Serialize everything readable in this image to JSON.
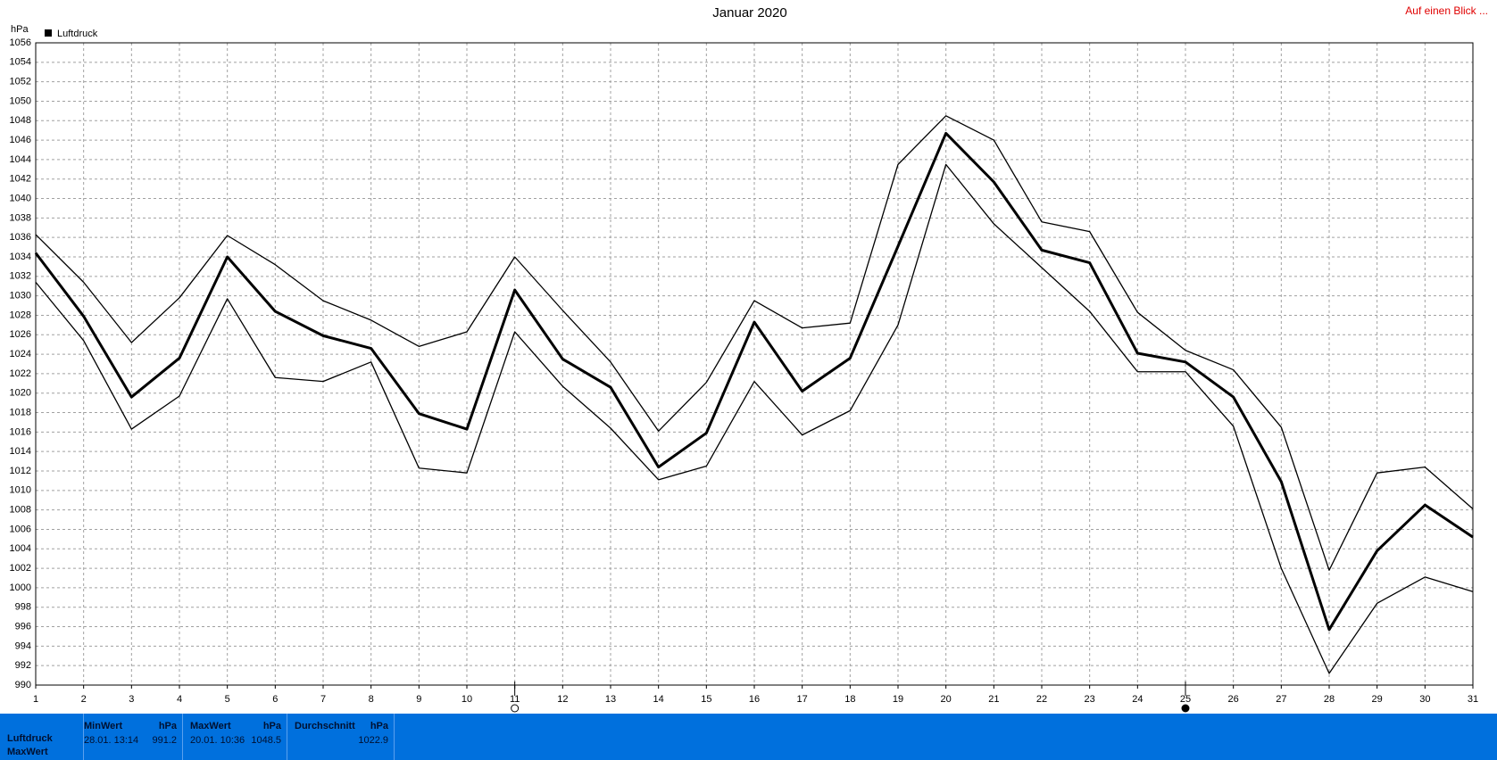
{
  "link": "Auf einen Blick ...",
  "chart_data": {
    "type": "line",
    "title": "Januar 2020",
    "y_unit": "hPa",
    "legend": "Luftdruck",
    "x": [
      1,
      2,
      3,
      4,
      5,
      6,
      7,
      8,
      9,
      10,
      11,
      12,
      13,
      14,
      15,
      16,
      17,
      18,
      19,
      20,
      21,
      22,
      23,
      24,
      25,
      26,
      27,
      28,
      29,
      30,
      31
    ],
    "xlim": [
      1,
      31
    ],
    "ylim": [
      990,
      1056
    ],
    "yticks": [
      990,
      992,
      994,
      996,
      998,
      1000,
      1002,
      1004,
      1006,
      1008,
      1010,
      1012,
      1014,
      1016,
      1018,
      1020,
      1022,
      1024,
      1026,
      1028,
      1030,
      1032,
      1034,
      1036,
      1038,
      1040,
      1042,
      1044,
      1046,
      1048,
      1050,
      1052,
      1054,
      1056
    ],
    "grid": true,
    "series": [
      {
        "color": "#000000",
        "values": [
          1036.3,
          1031.4,
          1025.2,
          1029.8,
          1036.2,
          1033.2,
          1029.5,
          1027.5,
          1024.8,
          1026.3,
          1034.0,
          1028.5,
          1023.2,
          1016.1,
          1021.1,
          1029.5,
          1026.7,
          1027.2,
          1043.5,
          1048.5,
          1046.0,
          1037.6,
          1036.6,
          1028.3,
          1024.4,
          1022.4,
          1016.5,
          1001.8,
          1011.8,
          1012.4,
          1008.1
        ]
      },
      {
        "name": "Luftdruck",
        "color": "#000000",
        "values": [
          1034.4,
          1027.9,
          1019.6,
          1023.6,
          1034.0,
          1028.4,
          1025.9,
          1024.6,
          1017.9,
          1016.3,
          1030.6,
          1023.5,
          1020.6,
          1012.4,
          1015.9,
          1027.3,
          1020.2,
          1023.6,
          1035.1,
          1046.7,
          1041.7,
          1034.7,
          1033.4,
          1024.1,
          1023.2,
          1019.6,
          1010.9,
          995.7,
          1003.8,
          1008.5,
          1005.2
        ]
      },
      {
        "color": "#000000",
        "values": [
          1031.4,
          1025.4,
          1016.3,
          1019.7,
          1029.7,
          1021.6,
          1021.2,
          1023.2,
          1012.3,
          1011.8,
          1026.3,
          1020.7,
          1016.4,
          1011.1,
          1012.5,
          1021.2,
          1015.7,
          1018.2,
          1027.0,
          1043.5,
          1037.4,
          1032.9,
          1028.4,
          1022.2,
          1022.2,
          1016.6,
          1002.0,
          991.2,
          998.4,
          1001.1,
          999.6
        ]
      }
    ]
  },
  "summary": {
    "row_labels": [
      "Luftdruck",
      "MaxWert"
    ],
    "min": {
      "header": "MinWert",
      "unit": "hPa",
      "date": "28.01.  13:14",
      "value": "991.2"
    },
    "max": {
      "header": "MaxWert",
      "unit": "hPa",
      "date": "20.01.  10:36",
      "value": "1048.5"
    },
    "avg": {
      "header": "Durchschnitt",
      "unit": "hPa",
      "value": "1022.9"
    }
  }
}
